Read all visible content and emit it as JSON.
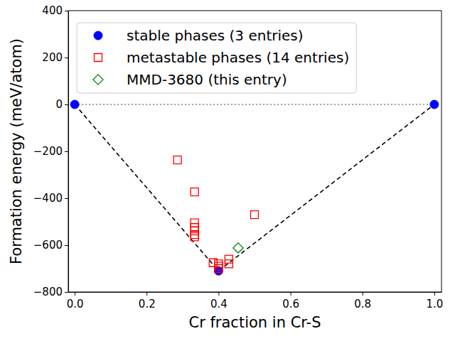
{
  "chart_data": {
    "type": "scatter",
    "x_label": "Cr fraction in Cr-S",
    "y_label": "Formation energy (meV/atom)",
    "xlim": [
      -0.018,
      1.02
    ],
    "ylim": [
      -800,
      400
    ],
    "xticks": [
      {
        "value": 0,
        "label": "0.0"
      },
      {
        "value": 0.2,
        "label": "0.2"
      },
      {
        "value": 0.4,
        "label": "0.4"
      },
      {
        "value": 0.6,
        "label": "0.6"
      },
      {
        "value": 0.8,
        "label": "0.8"
      },
      {
        "value": 1,
        "label": "1.0"
      }
    ],
    "yticks": [
      {
        "value": -800,
        "label": "−800"
      },
      {
        "value": -600,
        "label": "−600"
      },
      {
        "value": -400,
        "label": "−400"
      },
      {
        "value": -200,
        "label": "−200"
      },
      0,
      200,
      400
    ],
    "legend": "upper-left",
    "series": [
      {
        "type": "line",
        "color": "#808080",
        "line_style": "dotted",
        "x": [
          0,
          1
        ],
        "values": [
          0,
          0
        ]
      },
      {
        "type": "line",
        "color": "#000000",
        "line_style": "dashed",
        "x": [
          0,
          0.4,
          1
        ],
        "values": [
          0,
          -710,
          0
        ]
      },
      {
        "name": "stable phases (3 entries)",
        "type": "scatter",
        "color": "#0000ff",
        "marker": "circle",
        "x": [
          0,
          0.4,
          1
        ],
        "values": [
          0,
          -710,
          0
        ]
      },
      {
        "name": "metastable phases (14 entries)",
        "type": "scatter",
        "color": "#ff0000",
        "marker": "square-open",
        "x": [
          0.2857,
          0.3333,
          0.3333,
          0.3333,
          0.3333,
          0.3333,
          0.3333,
          0.385,
          0.4,
          0.4,
          0.4,
          0.4286,
          0.4286,
          0.5
        ],
        "values": [
          -237,
          -373,
          -505,
          -525,
          -540,
          -555,
          -565,
          -675,
          -680,
          -690,
          -700,
          -660,
          -680,
          -470
        ]
      },
      {
        "name": "MMD-3680 (this entry)",
        "type": "scatter",
        "color": "#008000",
        "marker": "diamond-open",
        "x": [
          0.4545
        ],
        "values": [
          -612
        ]
      }
    ]
  }
}
